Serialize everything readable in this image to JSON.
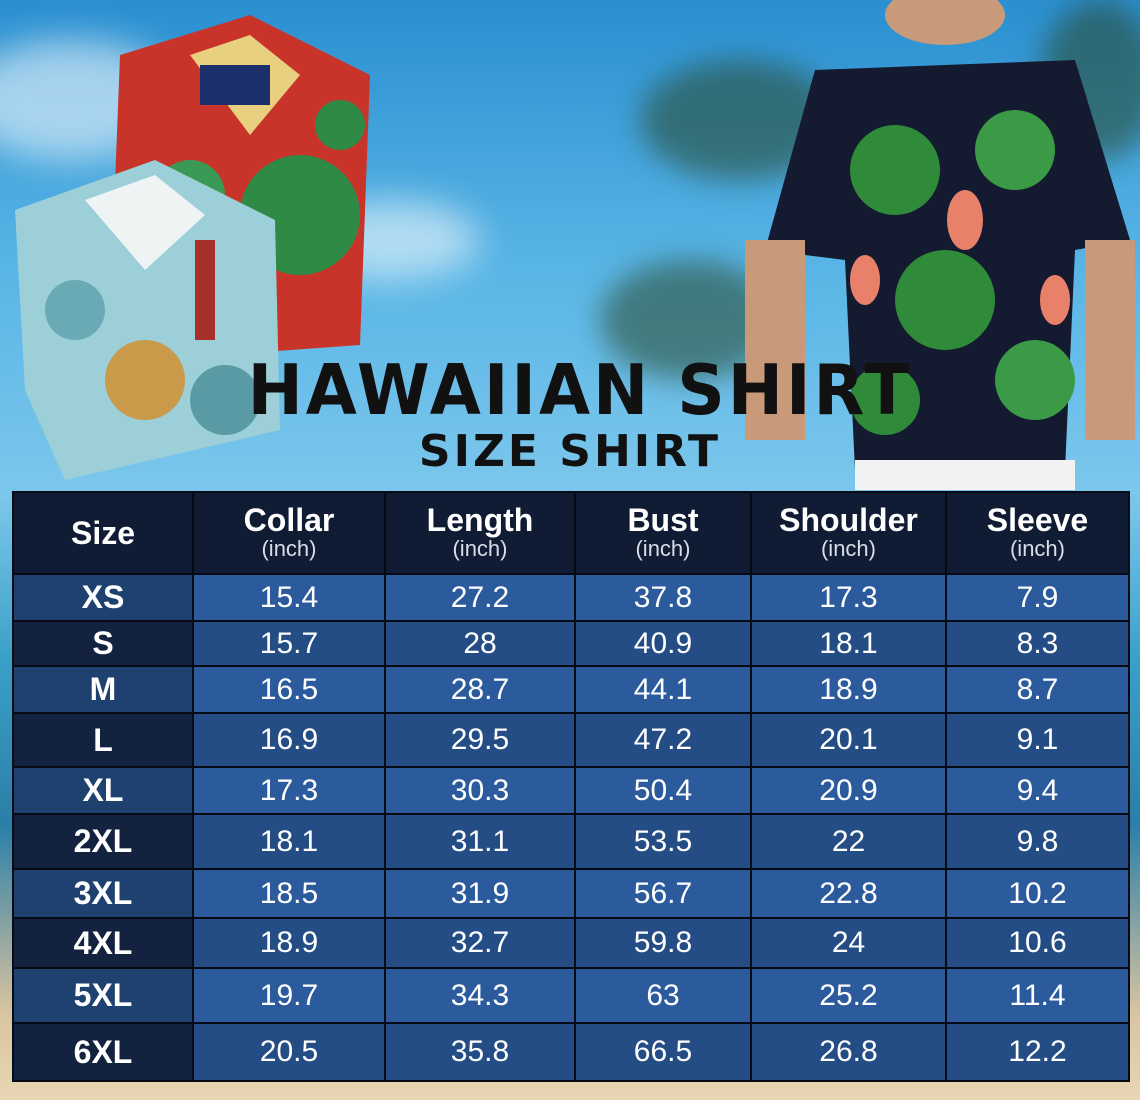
{
  "title": "HAWAIIAN SHIRT",
  "subtitle": "SIZE SHIRT",
  "colors": {
    "header": "#101c33",
    "row_light": "#2b5b9d",
    "row_dark": "#244d86",
    "title": "#111111"
  },
  "table": {
    "headers": [
      {
        "label": "Size",
        "unit": ""
      },
      {
        "label": "Collar",
        "unit": "(inch)"
      },
      {
        "label": "Length",
        "unit": "(inch)"
      },
      {
        "label": "Bust",
        "unit": "(inch)"
      },
      {
        "label": "Shoulder",
        "unit": "(inch)"
      },
      {
        "label": "Sleeve",
        "unit": "(inch)"
      }
    ],
    "rows": [
      [
        "XS",
        "15.4",
        "27.2",
        "37.8",
        "17.3",
        "7.9"
      ],
      [
        "S",
        "15.7",
        "28",
        "40.9",
        "18.1",
        "8.3"
      ],
      [
        "M",
        "16.5",
        "28.7",
        "44.1",
        "18.9",
        "8.7"
      ],
      [
        "L",
        "16.9",
        "29.5",
        "47.2",
        "20.1",
        "9.1"
      ],
      [
        "XL",
        "17.3",
        "30.3",
        "50.4",
        "20.9",
        "9.4"
      ],
      [
        "2XL",
        "18.1",
        "31.1",
        "53.5",
        "22",
        "9.8"
      ],
      [
        "3XL",
        "18.5",
        "31.9",
        "56.7",
        "22.8",
        "10.2"
      ],
      [
        "4XL",
        "18.9",
        "32.7",
        "59.8",
        "24",
        "10.6"
      ],
      [
        "5XL",
        "19.7",
        "34.3",
        "63",
        "25.2",
        "11.4"
      ],
      [
        "6XL",
        "20.5",
        "35.8",
        "66.5",
        "26.8",
        "12.2"
      ]
    ]
  }
}
